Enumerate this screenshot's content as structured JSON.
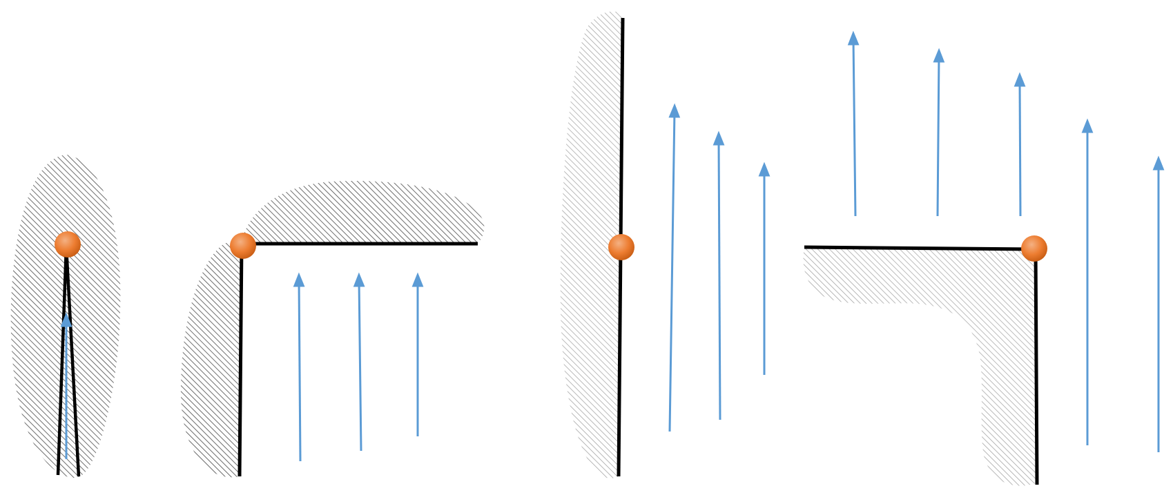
{
  "colors": {
    "background": "#ffffff",
    "edge": "#000000",
    "arrow": "#5b9bd5",
    "hatch_dark": "#4a4a4a",
    "hatch_light": "#9e9e9e",
    "pivot_light": "#f4b183",
    "pivot_mid": "#ed7d31",
    "pivot_dark": "#c55a11"
  },
  "panels": [
    {
      "id": "panel-1",
      "configuration": "narrow-wedge",
      "pivot": "orange-sphere",
      "arrows": 1,
      "arrow_direction": "up",
      "hatch": "dark"
    },
    {
      "id": "panel-2",
      "configuration": "right-angle-corner",
      "pivot": "orange-sphere",
      "arrows": 3,
      "arrow_direction": "up",
      "hatch": "dark"
    },
    {
      "id": "panel-3",
      "configuration": "single-wall",
      "pivot": "orange-sphere",
      "arrows": 3,
      "arrow_direction": "up",
      "hatch": "light"
    },
    {
      "id": "panel-4",
      "configuration": "inverted-corner",
      "pivot": "orange-sphere",
      "arrows": 5,
      "arrow_direction": "up",
      "hatch": "light"
    }
  ]
}
